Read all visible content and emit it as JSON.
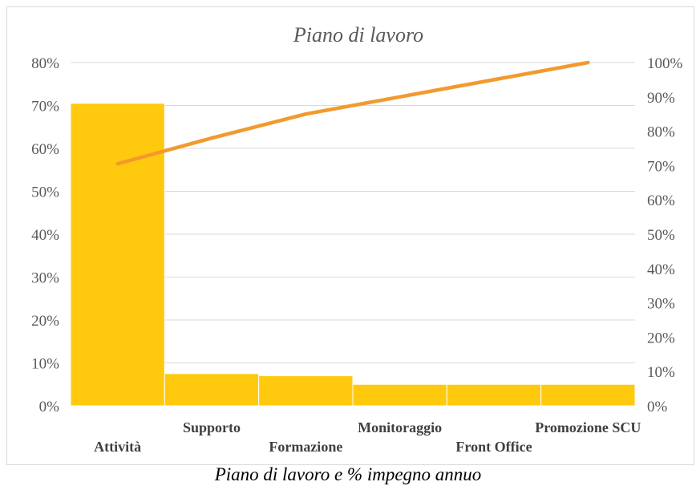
{
  "chart_data": {
    "type": "bar",
    "title": "Piano di lavoro",
    "categories": [
      "Attività",
      "Supporto",
      "Formazione",
      "Monitoraggio",
      "Front Office",
      "Promozione SCU"
    ],
    "series": [
      {
        "type": "bar",
        "axis": "left",
        "values": [
          70.5,
          7.5,
          7.0,
          5.0,
          5.0,
          5.0
        ],
        "color": "#FFC90E"
      },
      {
        "type": "line",
        "axis": "right",
        "values": [
          70.5,
          78.0,
          85.0,
          90.0,
          95.0,
          100.0
        ],
        "color": "#F29A2E"
      }
    ],
    "y_left": {
      "min": 0,
      "max": 80,
      "step": 10,
      "unit": "%"
    },
    "y_right": {
      "min": 0,
      "max": 100,
      "step": 10,
      "unit": "%"
    },
    "grid": true
  },
  "caption": "Piano di lavoro e % impegno annuo"
}
